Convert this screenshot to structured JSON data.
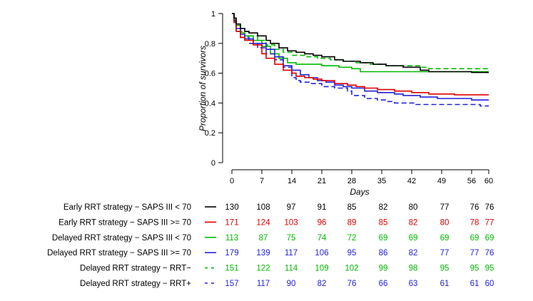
{
  "chart_data": {
    "type": "line",
    "subtype": "kaplan-meier",
    "title": "",
    "xlabel": "Days",
    "ylabel": "Proportion of survivors",
    "xlim": [
      0,
      60
    ],
    "ylim": [
      0,
      1
    ],
    "x_ticks": [
      0,
      7,
      14,
      21,
      28,
      35,
      42,
      49,
      56,
      60
    ],
    "y_ticks": [
      "0",
      "0.2",
      "0.4",
      "0.6",
      "0.8",
      "1"
    ],
    "y_tick_values": [
      0,
      0.2,
      0.4,
      0.6,
      0.8,
      1
    ],
    "series": [
      {
        "name": "Early RRT strategy − SAPS III < 70",
        "color": "#000000",
        "dash": "solid",
        "steps": [
          [
            0,
            1.0
          ],
          [
            0.5,
            0.97
          ],
          [
            1,
            0.93
          ],
          [
            2,
            0.9
          ],
          [
            3,
            0.88
          ],
          [
            4,
            0.87
          ],
          [
            6,
            0.85
          ],
          [
            8,
            0.82
          ],
          [
            9,
            0.8
          ],
          [
            11,
            0.77
          ],
          [
            13,
            0.75
          ],
          [
            15,
            0.74
          ],
          [
            17,
            0.73
          ],
          [
            19,
            0.72
          ],
          [
            21,
            0.71
          ],
          [
            24,
            0.69
          ],
          [
            26,
            0.68
          ],
          [
            30,
            0.67
          ],
          [
            33,
            0.66
          ],
          [
            36,
            0.65
          ],
          [
            40,
            0.64
          ],
          [
            44,
            0.62
          ],
          [
            46,
            0.61
          ],
          [
            56,
            0.605
          ]
        ],
        "at_risk": [
          "130",
          "108",
          "97",
          "91",
          "85",
          "82",
          "80",
          "77",
          "76",
          "76"
        ]
      },
      {
        "name": "Early RRT strategy − SAPS III >= 70",
        "color": "#e00000",
        "dash": "solid",
        "steps": [
          [
            0,
            1.0
          ],
          [
            0.5,
            0.94
          ],
          [
            1,
            0.88
          ],
          [
            2,
            0.84
          ],
          [
            3,
            0.82
          ],
          [
            5,
            0.79
          ],
          [
            7,
            0.73
          ],
          [
            8,
            0.7
          ],
          [
            10,
            0.66
          ],
          [
            12,
            0.62
          ],
          [
            14,
            0.6
          ],
          [
            15,
            0.58
          ],
          [
            17,
            0.57
          ],
          [
            19,
            0.56
          ],
          [
            21,
            0.55
          ],
          [
            24,
            0.53
          ],
          [
            27,
            0.52
          ],
          [
            29,
            0.51
          ],
          [
            31,
            0.5
          ],
          [
            34,
            0.49
          ],
          [
            38,
            0.48
          ],
          [
            42,
            0.47
          ],
          [
            46,
            0.46
          ],
          [
            52,
            0.455
          ]
        ],
        "at_risk": [
          "171",
          "124",
          "103",
          "96",
          "89",
          "85",
          "82",
          "80",
          "78",
          "77"
        ]
      },
      {
        "name": "Delayed RRT strategy − SAPS III < 70",
        "color": "#00bb00",
        "dash": "solid",
        "steps": [
          [
            0,
            1.0
          ],
          [
            0.5,
            0.95
          ],
          [
            1,
            0.92
          ],
          [
            2,
            0.87
          ],
          [
            3,
            0.85
          ],
          [
            5,
            0.82
          ],
          [
            7,
            0.78
          ],
          [
            9,
            0.73
          ],
          [
            11,
            0.7
          ],
          [
            13,
            0.67
          ],
          [
            15,
            0.66
          ],
          [
            21,
            0.65
          ],
          [
            25,
            0.64
          ],
          [
            28,
            0.63
          ],
          [
            30,
            0.61
          ]
        ],
        "at_risk": [
          "113",
          "87",
          "75",
          "74",
          "72",
          "69",
          "69",
          "69",
          "69",
          "69"
        ]
      },
      {
        "name": "Delayed RRT strategy − SAPS III >= 70",
        "color": "#2222dd",
        "dash": "solid",
        "steps": [
          [
            0,
            1.0
          ],
          [
            0.5,
            0.95
          ],
          [
            1,
            0.9
          ],
          [
            2,
            0.86
          ],
          [
            3,
            0.83
          ],
          [
            5,
            0.8
          ],
          [
            8,
            0.76
          ],
          [
            10,
            0.71
          ],
          [
            12,
            0.65
          ],
          [
            14,
            0.62
          ],
          [
            16,
            0.59
          ],
          [
            18,
            0.57
          ],
          [
            20,
            0.55
          ],
          [
            22,
            0.54
          ],
          [
            24,
            0.52
          ],
          [
            26,
            0.51
          ],
          [
            28,
            0.5
          ],
          [
            31,
            0.48
          ],
          [
            34,
            0.47
          ],
          [
            38,
            0.46
          ],
          [
            40,
            0.45
          ],
          [
            44,
            0.44
          ],
          [
            48,
            0.43
          ],
          [
            56,
            0.42
          ]
        ],
        "at_risk": [
          "179",
          "139",
          "117",
          "106",
          "95",
          "86",
          "82",
          "77",
          "77",
          "76"
        ]
      },
      {
        "name": "Delayed RRT strategy − RRT−",
        "color": "#00bb00",
        "dash": "dashed",
        "steps": [
          [
            0,
            1.0
          ],
          [
            0.5,
            0.96
          ],
          [
            1,
            0.92
          ],
          [
            2,
            0.88
          ],
          [
            4,
            0.85
          ],
          [
            6,
            0.82
          ],
          [
            8,
            0.79
          ],
          [
            10,
            0.76
          ],
          [
            12,
            0.74
          ],
          [
            14,
            0.72
          ],
          [
            17,
            0.71
          ],
          [
            20,
            0.7
          ],
          [
            23,
            0.69
          ],
          [
            26,
            0.68
          ],
          [
            29,
            0.67
          ],
          [
            32,
            0.66
          ],
          [
            36,
            0.65
          ],
          [
            44,
            0.64
          ],
          [
            46,
            0.63
          ]
        ],
        "at_risk": [
          "151",
          "122",
          "114",
          "109",
          "102",
          "99",
          "98",
          "95",
          "95",
          "95"
        ]
      },
      {
        "name": "Delayed RRT strategy − RRT+",
        "color": "#2222dd",
        "dash": "dashed",
        "steps": [
          [
            0,
            1.0
          ],
          [
            0.5,
            0.95
          ],
          [
            1,
            0.88
          ],
          [
            2,
            0.84
          ],
          [
            4,
            0.8
          ],
          [
            6,
            0.77
          ],
          [
            8,
            0.73
          ],
          [
            10,
            0.69
          ],
          [
            12,
            0.64
          ],
          [
            14,
            0.57
          ],
          [
            15,
            0.55
          ],
          [
            16,
            0.54
          ],
          [
            18,
            0.53
          ],
          [
            21,
            0.51
          ],
          [
            24,
            0.5
          ],
          [
            27,
            0.48
          ],
          [
            28,
            0.45
          ],
          [
            31,
            0.43
          ],
          [
            34,
            0.42
          ],
          [
            36,
            0.41
          ],
          [
            38,
            0.4
          ],
          [
            43,
            0.39
          ],
          [
            50,
            0.39
          ],
          [
            58,
            0.38
          ]
        ],
        "at_risk": [
          "157",
          "117",
          "90",
          "82",
          "76",
          "66",
          "63",
          "61",
          "61",
          "60"
        ]
      }
    ]
  }
}
